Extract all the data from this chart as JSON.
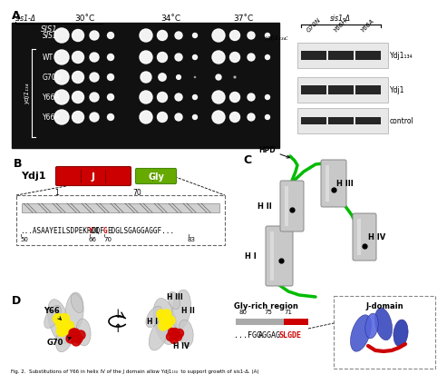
{
  "panel_A_label": "A",
  "panel_B_label": "B",
  "panel_C_label": "C",
  "panel_D_label": "D",
  "sis1_label": "sis1-Δ",
  "temps": [
    "30˚C",
    "34˚C",
    "37˚C"
  ],
  "ydj1_134_label": "ydj1₁₃₄",
  "SIS1": "SIS1",
  "strains": [
    "WT",
    "G70N",
    "Y66A",
    "Y66H"
  ],
  "wb_labels": [
    "Ydj1₁₃₄",
    "Ydj1",
    "control"
  ],
  "wb_conditions": [
    "G70N",
    "Y66H",
    "Y66A"
  ],
  "J_label": "J",
  "Gly_label": "Gly",
  "Ydj1_label": "Ydj1",
  "HPD": "HPD",
  "Y66_label": "Y66",
  "G70_label": "G70",
  "Gly_rich_label": "Gly-rich region",
  "J_domain_label": "J-domain",
  "fig_caption": "Fig. 2.  Substitutions of Y66 in helix IV of the J domain allow Ydj1₁₃₄  to support growth of sis1-Δ. (A)",
  "bg_color": "#ffffff",
  "red_color": "#cc0000",
  "green_color": "#66aa00",
  "plate_bg": "#111111",
  "helix_fill": "#c8c8c8",
  "helix_edge": "#888888"
}
